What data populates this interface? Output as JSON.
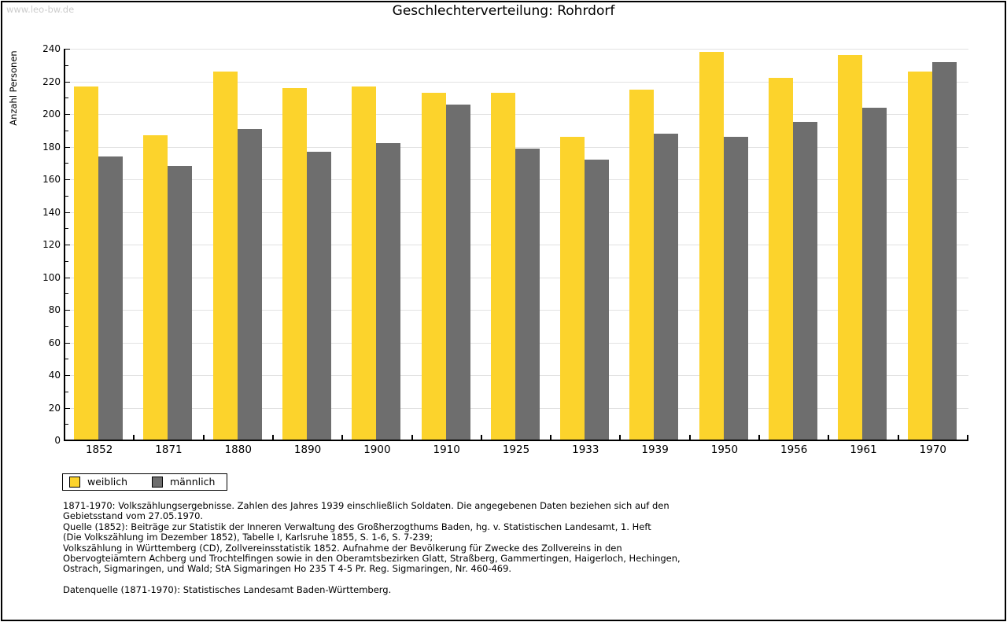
{
  "watermark": "www.leo-bw.de",
  "chart_data": {
    "type": "bar",
    "title": "Geschlechterverteilung: Rohrdorf",
    "ylabel": "Anzahl Personen",
    "ylim": [
      0,
      240
    ],
    "ytick_step": 20,
    "ytick_minor_step": 10,
    "grid": true,
    "legend_position": "bottom-left",
    "categories": [
      "1852",
      "1871",
      "1880",
      "1890",
      "1900",
      "1910",
      "1925",
      "1933",
      "1939",
      "1950",
      "1956",
      "1961",
      "1970"
    ],
    "series": [
      {
        "name": "weiblich",
        "color": "#fcd32c",
        "values": [
          217,
          187,
          226,
          216,
          217,
          213,
          213,
          186,
          215,
          238,
          222,
          236,
          226
        ]
      },
      {
        "name": "männlich",
        "color": "#6e6e6e",
        "values": [
          174,
          168,
          191,
          177,
          182,
          206,
          179,
          172,
          188,
          186,
          195,
          204,
          232
        ]
      }
    ],
    "colors": {
      "grid": "#e2e2e2",
      "axis": "#000000",
      "watermark": "#cccccc"
    }
  },
  "footnotes": [
    "1871-1970: Volkszählungsergebnisse. Zahlen des Jahres 1939 einschließlich Soldaten. Die angegebenen Daten beziehen sich auf den",
    "Gebietsstand vom 27.05.1970.",
    "Quelle (1852): Beiträge zur Statistik der Inneren Verwaltung des Großherzogthums Baden, hg. v. Statistischen Landesamt, 1. Heft",
    "(Die Volkszählung im Dezember 1852), Tabelle I, Karlsruhe 1855, S. 1-6, S. 7-239;",
    "Volkszählung in Württemberg (CD), Zollvereinsstatistik 1852. Aufnahme der Bevölkerung für Zwecke des Zollvereins in den",
    "Obervogteiämtern Achberg und Trochtelfingen sowie in den Oberamtsbezirken Glatt, Straßberg, Gammertingen, Haigerloch, Hechingen,",
    "Ostrach, Sigmaringen, und Wald; StA Sigmaringen Ho 235 T 4-5 Pr. Reg. Sigmaringen, Nr. 460-469.",
    "",
    "Datenquelle (1871-1970): Statistisches Landesamt Baden-Württemberg."
  ]
}
